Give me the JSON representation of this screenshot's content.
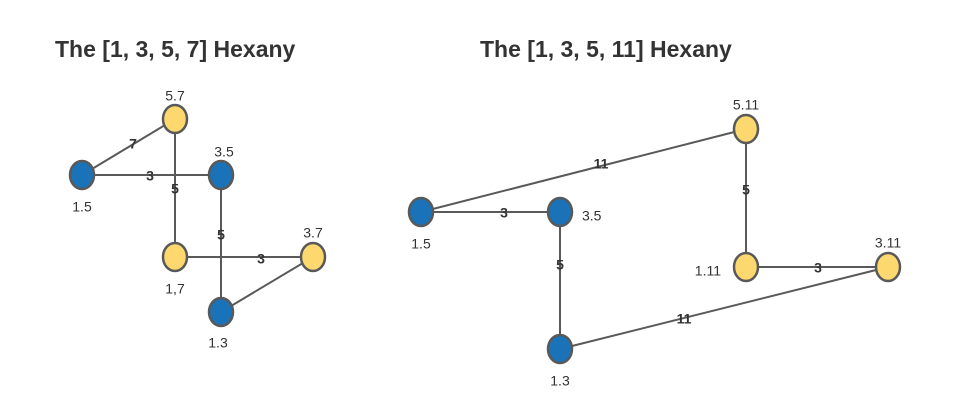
{
  "colors": {
    "blue_node": "#1a73b8",
    "yellow_node": "#fcd86e",
    "edge": "#595959",
    "text": "#333333"
  },
  "diagrams": [
    {
      "title": "The [1, 3, 5, 7] Hexany",
      "nodes": [
        {
          "id": "n57",
          "label": "5.7",
          "color": "yellow"
        },
        {
          "id": "n15",
          "label": "1.5",
          "color": "blue"
        },
        {
          "id": "n35",
          "label": "3.5",
          "color": "blue"
        },
        {
          "id": "n17",
          "label": "1,7",
          "color": "yellow"
        },
        {
          "id": "n37",
          "label": "3.7",
          "color": "yellow"
        },
        {
          "id": "n13",
          "label": "1.3",
          "color": "blue"
        }
      ],
      "edges": [
        {
          "from": "n15",
          "to": "n57",
          "label": "7"
        },
        {
          "from": "n15",
          "to": "n35",
          "label": "3"
        },
        {
          "from": "n57",
          "to": "n17",
          "label": "5"
        },
        {
          "from": "n35",
          "to": "n13",
          "label": "5"
        },
        {
          "from": "n17",
          "to": "n37",
          "label": "3"
        },
        {
          "from": "n13",
          "to": "n37",
          "label": ""
        }
      ]
    },
    {
      "title": "The [1, 3, 5, 11] Hexany",
      "nodes": [
        {
          "id": "m511",
          "label": "5.11",
          "color": "yellow"
        },
        {
          "id": "m15",
          "label": "1.5",
          "color": "blue"
        },
        {
          "id": "m35",
          "label": "3.5",
          "color": "blue"
        },
        {
          "id": "m111",
          "label": "1.11",
          "color": "yellow"
        },
        {
          "id": "m311",
          "label": "3.11",
          "color": "yellow"
        },
        {
          "id": "m13",
          "label": "1.3",
          "color": "blue"
        }
      ],
      "edges": [
        {
          "from": "m15",
          "to": "m511",
          "label": "11"
        },
        {
          "from": "m15",
          "to": "m35",
          "label": "3"
        },
        {
          "from": "m511",
          "to": "m111",
          "label": "5"
        },
        {
          "from": "m35",
          "to": "m13",
          "label": "5"
        },
        {
          "from": "m111",
          "to": "m311",
          "label": "3"
        },
        {
          "from": "m13",
          "to": "m311",
          "label": "11"
        }
      ]
    }
  ]
}
